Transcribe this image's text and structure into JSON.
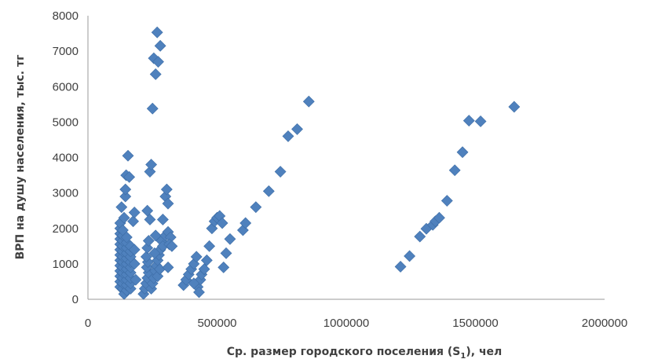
{
  "chart_data": {
    "type": "scatter",
    "xlabel": "Ср. размер городского поселения (S",
    "xlabel_sub": "1",
    "xlabel_tail": "), чел",
    "ylabel": "ВРП на душу населения, тыс. тг",
    "xlim": [
      0,
      2000000
    ],
    "ylim": [
      0,
      8000
    ],
    "x_ticks": [
      0,
      500000,
      1000000,
      1500000,
      2000000
    ],
    "y_ticks": [
      0,
      1000,
      2000,
      3000,
      4000,
      5000,
      6000,
      7000,
      8000
    ],
    "grid": false,
    "legend": "none",
    "marker": "diamond",
    "marker_color": "#4f81bd",
    "points": [
      [
        125000,
        350
      ],
      [
        125000,
        500
      ],
      [
        125000,
        650
      ],
      [
        125000,
        800
      ],
      [
        125000,
        950
      ],
      [
        125000,
        1100
      ],
      [
        125000,
        1250
      ],
      [
        125000,
        1400
      ],
      [
        125000,
        1550
      ],
      [
        125000,
        1700
      ],
      [
        125000,
        1850
      ],
      [
        125000,
        2000
      ],
      [
        125000,
        2150
      ],
      [
        135000,
        300
      ],
      [
        135000,
        450
      ],
      [
        135000,
        600
      ],
      [
        135000,
        750
      ],
      [
        135000,
        900
      ],
      [
        135000,
        1050
      ],
      [
        135000,
        1200
      ],
      [
        135000,
        1350
      ],
      [
        135000,
        1500
      ],
      [
        135000,
        1650
      ],
      [
        135000,
        1800
      ],
      [
        135000,
        1950
      ],
      [
        130000,
        2600
      ],
      [
        140000,
        2300
      ],
      [
        140000,
        150
      ],
      [
        145000,
        2900
      ],
      [
        145000,
        3100
      ],
      [
        148000,
        3500
      ],
      [
        155000,
        4050
      ],
      [
        160000,
        3450
      ],
      [
        150000,
        250
      ],
      [
        150000,
        400
      ],
      [
        150000,
        550
      ],
      [
        150000,
        700
      ],
      [
        150000,
        850
      ],
      [
        150000,
        1000
      ],
      [
        150000,
        1150
      ],
      [
        150000,
        1300
      ],
      [
        150000,
        1450
      ],
      [
        150000,
        1600
      ],
      [
        150000,
        1750
      ],
      [
        165000,
        300
      ],
      [
        165000,
        450
      ],
      [
        165000,
        600
      ],
      [
        165000,
        750
      ],
      [
        165000,
        900
      ],
      [
        165000,
        1050
      ],
      [
        165000,
        1200
      ],
      [
        165000,
        1350
      ],
      [
        165000,
        1500
      ],
      [
        175000,
        2200
      ],
      [
        180000,
        2450
      ],
      [
        180000,
        1400
      ],
      [
        180000,
        1000
      ],
      [
        185000,
        550
      ],
      [
        215000,
        150
      ],
      [
        220000,
        300
      ],
      [
        225000,
        450
      ],
      [
        230000,
        600
      ],
      [
        235000,
        750
      ],
      [
        228000,
        900
      ],
      [
        232000,
        1050
      ],
      [
        226000,
        1200
      ],
      [
        230000,
        1450
      ],
      [
        235000,
        1650
      ],
      [
        230000,
        2500
      ],
      [
        240000,
        2250
      ],
      [
        240000,
        3600
      ],
      [
        245000,
        3800
      ],
      [
        250000,
        5380
      ],
      [
        255000,
        6800
      ],
      [
        262000,
        6350
      ],
      [
        268000,
        7530
      ],
      [
        272000,
        6700
      ],
      [
        280000,
        7150
      ],
      [
        245000,
        300
      ],
      [
        250000,
        450
      ],
      [
        255000,
        600
      ],
      [
        260000,
        800
      ],
      [
        265000,
        950
      ],
      [
        270000,
        1100
      ],
      [
        275000,
        1250
      ],
      [
        280000,
        1400
      ],
      [
        285000,
        1650
      ],
      [
        290000,
        1500
      ],
      [
        258000,
        1300
      ],
      [
        262000,
        1800
      ],
      [
        270000,
        650
      ],
      [
        278000,
        850
      ],
      [
        290000,
        2250
      ],
      [
        300000,
        2900
      ],
      [
        305000,
        3100
      ],
      [
        310000,
        2700
      ],
      [
        300000,
        1800
      ],
      [
        310000,
        1900
      ],
      [
        320000,
        1750
      ],
      [
        315000,
        1550
      ],
      [
        325000,
        1500
      ],
      [
        310000,
        900
      ],
      [
        370000,
        400
      ],
      [
        380000,
        550
      ],
      [
        390000,
        700
      ],
      [
        400000,
        850
      ],
      [
        410000,
        1000
      ],
      [
        420000,
        1200
      ],
      [
        425000,
        350
      ],
      [
        430000,
        200
      ],
      [
        435000,
        550
      ],
      [
        440000,
        700
      ],
      [
        450000,
        850
      ],
      [
        460000,
        1100
      ],
      [
        470000,
        1500
      ],
      [
        410000,
        450
      ],
      [
        480000,
        2000
      ],
      [
        490000,
        2200
      ],
      [
        500000,
        2300
      ],
      [
        510000,
        2350
      ],
      [
        520000,
        2150
      ],
      [
        525000,
        900
      ],
      [
        535000,
        1300
      ],
      [
        550000,
        1700
      ],
      [
        600000,
        1950
      ],
      [
        610000,
        2150
      ],
      [
        650000,
        2600
      ],
      [
        700000,
        3050
      ],
      [
        745000,
        3600
      ],
      [
        775000,
        4600
      ],
      [
        810000,
        4800
      ],
      [
        855000,
        5580
      ],
      [
        1210000,
        920
      ],
      [
        1245000,
        1220
      ],
      [
        1285000,
        1770
      ],
      [
        1310000,
        1990
      ],
      [
        1335000,
        2100
      ],
      [
        1345000,
        2200
      ],
      [
        1360000,
        2300
      ],
      [
        1390000,
        2780
      ],
      [
        1420000,
        3640
      ],
      [
        1450000,
        4150
      ],
      [
        1475000,
        5040
      ],
      [
        1520000,
        5020
      ],
      [
        1650000,
        5430
      ]
    ]
  }
}
